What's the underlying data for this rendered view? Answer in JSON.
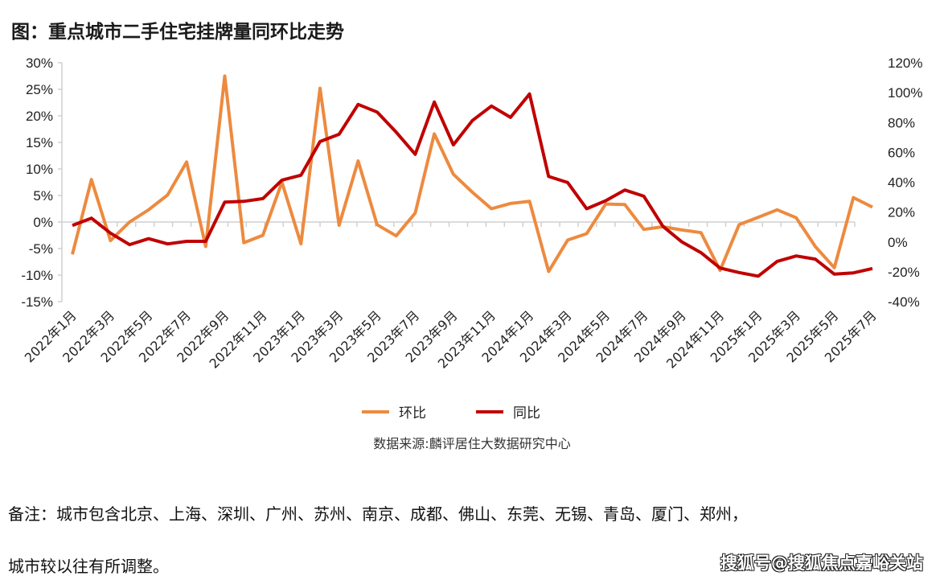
{
  "title": "图：重点城市二手住宅挂牌量同环比走势",
  "chart_data": {
    "type": "line",
    "title": "图：重点城市二手住宅挂牌量同环比走势",
    "categories": [
      "2022年1月",
      "2022年2月",
      "2022年3月",
      "2022年4月",
      "2022年5月",
      "2022年6月",
      "2022年7月",
      "2022年8月",
      "2022年9月",
      "2022年10月",
      "2022年11月",
      "2022年12月",
      "2023年1月",
      "2023年2月",
      "2023年3月",
      "2023年4月",
      "2023年5月",
      "2023年6月",
      "2023年7月",
      "2023年8月",
      "2023年9月",
      "2023年10月",
      "2023年11月",
      "2023年12月",
      "2024年1月",
      "2024年2月",
      "2024年3月",
      "2024年4月",
      "2024年5月",
      "2024年6月",
      "2024年7月",
      "2024年8月",
      "2024年9月",
      "2024年10月",
      "2024年11月",
      "2024年12月",
      "2025年1月",
      "2025年2月",
      "2025年3月",
      "2025年4月",
      "2025年5月",
      "2025年6月",
      "2025年7月"
    ],
    "x_tick_labels": [
      "2022年1月",
      "2022年3月",
      "2022年5月",
      "2022年7月",
      "2022年9月",
      "2022年11月",
      "2023年1月",
      "2023年3月",
      "2023年5月",
      "2023年7月",
      "2023年9月",
      "2023年11月",
      "2024年1月",
      "2024年3月",
      "2024年5月",
      "2024年7月",
      "2024年9月",
      "2024年11月",
      "2025年1月",
      "2025年3月",
      "2025年5月",
      "2025年7月"
    ],
    "y_left": {
      "ylim": [
        -15,
        30
      ],
      "ticks": [
        "30%",
        "25%",
        "20%",
        "15%",
        "10%",
        "5%",
        "0%",
        "-5%",
        "-10%",
        "-15%"
      ],
      "tick_values": [
        30,
        25,
        20,
        15,
        10,
        5,
        0,
        -5,
        -10,
        -15
      ]
    },
    "y_right": {
      "ylim": [
        -40,
        120
      ],
      "ticks": [
        "120%",
        "100%",
        "80%",
        "60%",
        "40%",
        "20%",
        "0%",
        "-20%",
        "-40%"
      ],
      "tick_values": [
        120,
        100,
        80,
        60,
        40,
        20,
        0,
        -20,
        -40
      ]
    },
    "series": [
      {
        "name": "环比",
        "axis": "left",
        "color": "#ED8A3F",
        "values": [
          -6.1,
          8.0,
          -3.5,
          0.0,
          2.3,
          5.1,
          11.3,
          -4.6,
          27.5,
          -3.9,
          -2.5,
          7.5,
          -4.1,
          25.2,
          -0.6,
          11.5,
          -0.5,
          -2.6,
          1.7,
          16.6,
          9.0,
          5.6,
          2.5,
          3.5,
          3.9,
          -9.3,
          -3.4,
          -2.2,
          3.4,
          3.3,
          -1.4,
          -0.9,
          -1.5,
          -2.0,
          -9.1,
          -0.5,
          0.9,
          2.3,
          0.8,
          -4.6,
          -8.6,
          4.6,
          2.8
        ]
      },
      {
        "name": "同比",
        "axis": "right",
        "color": "#C00000",
        "values": [
          11.0,
          15.9,
          5.9,
          -1.8,
          2.2,
          -1.3,
          0.4,
          0.4,
          26.7,
          27.2,
          29.0,
          41.4,
          44.7,
          67.2,
          72.1,
          92.1,
          87.0,
          73.5,
          58.7,
          93.7,
          65.0,
          81.3,
          91.0,
          83.4,
          99.1,
          43.8,
          39.8,
          22.2,
          27.6,
          34.8,
          30.6,
          10.5,
          0.0,
          -7.2,
          -17.5,
          -20.5,
          -22.9,
          -13.0,
          -9.4,
          -11.5,
          -21.6,
          -20.7,
          -17.8
        ]
      }
    ],
    "grid": false,
    "legend": "bottom"
  },
  "source": "数据来源:麟评居住大数据研究中心",
  "note_line1": "备注：城市包含北京、上海、深圳、广州、苏州、南京、成都、佛山、东莞、无锡、青岛、厦门、郑州，",
  "note_line2": "城市较以往有所调整。",
  "watermark": "搜狐号@搜狐焦点嘉峪关站"
}
